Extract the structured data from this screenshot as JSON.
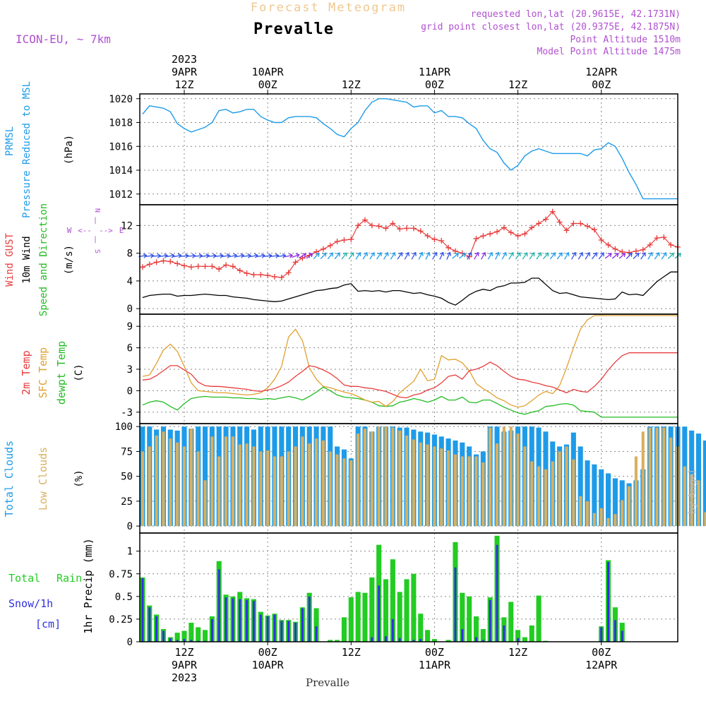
{
  "header": {
    "subtitle": "Forecast Meteogram",
    "title": "Prevalle",
    "model": "ICON-EU, ~ 7km",
    "requested": "requested lon,lat (20.9615E, 42.1731N)",
    "gridpoint": "grid point closest lon,lat (20.9375E, 42.1875N)",
    "point_alt": "Point Altitude 1510m",
    "model_alt": "Model Point Altitude 1475m"
  },
  "footer": {
    "station": "Prevalle",
    "credit": "by Angel"
  },
  "time_axis": {
    "top_ticks": [
      {
        "x": 12,
        "lines": [
          "2023",
          "9APR",
          "12Z"
        ]
      },
      {
        "x": 24,
        "lines": [
          "10APR",
          "00Z"
        ]
      },
      {
        "x": 36,
        "lines": [
          "12Z"
        ]
      },
      {
        "x": 48,
        "lines": [
          "11APR",
          "00Z"
        ]
      },
      {
        "x": 60,
        "lines": [
          "12Z"
        ]
      },
      {
        "x": 72,
        "lines": [
          "12APR",
          "00Z"
        ]
      }
    ],
    "bottom_ticks": [
      {
        "x": 12,
        "lines": [
          "12Z",
          "9APR",
          "2023"
        ]
      },
      {
        "x": 24,
        "lines": [
          "00Z",
          "10APR"
        ]
      },
      {
        "x": 36,
        "lines": [
          "12Z"
        ]
      },
      {
        "x": 48,
        "lines": [
          "00Z",
          "11APR"
        ]
      },
      {
        "x": 60,
        "lines": [
          "12Z"
        ]
      },
      {
        "x": 72,
        "lines": [
          "00Z",
          "12APR"
        ]
      }
    ]
  },
  "colors": {
    "pressure": "#1e9be8",
    "gust": "#e83c3c",
    "wind": "#000000",
    "direction": "#22bb22",
    "t2m": "#e83c3c",
    "sfc": "#e0a030",
    "dew": "#22bb22",
    "total_clouds": "#1e9be8",
    "low_clouds": "#d8b060",
    "rain": "#22cc22",
    "snow": "#3030e0",
    "label_purple": "#b050d0"
  },
  "chart_data": [
    {
      "type": "line",
      "name": "pressure",
      "labels": [
        "PRMSL",
        "Pressure Reduced to MSL",
        "(hPa)"
      ],
      "yticks": [
        1012,
        1014,
        1016,
        1018,
        1020
      ],
      "ylim": [
        1011.1,
        1020.4
      ],
      "x": [
        6,
        7,
        8,
        9,
        10,
        11,
        12,
        13,
        14,
        15,
        16,
        17,
        18,
        19,
        20,
        21,
        22,
        23,
        24,
        25,
        26,
        27,
        28,
        29,
        30,
        31,
        32,
        33,
        34,
        35,
        36,
        37,
        38,
        39,
        40,
        41,
        42,
        43,
        44,
        45,
        46,
        47,
        48,
        49,
        50,
        51,
        52,
        53,
        54,
        55,
        56,
        57,
        58,
        59,
        60,
        61,
        62,
        63,
        64,
        65,
        66,
        67,
        68,
        69,
        70,
        71,
        72,
        73,
        74,
        75,
        76,
        77,
        78,
        79,
        80,
        81,
        82,
        83
      ],
      "values": [
        1018.7,
        1019.4,
        1019.3,
        1019.2,
        1018.9,
        1017.9,
        1017.5,
        1017.2,
        1017.4,
        1017.6,
        1018.0,
        1019.0,
        1019.1,
        1018.8,
        1018.9,
        1019.1,
        1019.1,
        1018.5,
        1018.2,
        1018.0,
        1018.0,
        1018.4,
        1018.5,
        1018.5,
        1018.5,
        1018.4,
        1017.9,
        1017.5,
        1017.0,
        1016.8,
        1017.5,
        1018.0,
        1019.0,
        1019.7,
        1020.0,
        1020.0,
        1019.9,
        1019.8,
        1019.7,
        1019.3,
        1019.4,
        1019.4,
        1018.8,
        1019.0,
        1018.5,
        1018.5,
        1018.4,
        1017.9,
        1017.5,
        1016.5,
        1015.8,
        1015.5,
        1014.6,
        1014.0,
        1014.4,
        1015.2,
        1015.6,
        1015.8,
        1015.6,
        1015.4,
        1015.4,
        1015.4,
        1015.4,
        1015.4,
        1015.2,
        1015.7,
        1015.8,
        1016.3,
        1016.0,
        1015.0,
        1013.8,
        1012.8,
        1011.6,
        1011.6,
        1011.6,
        1011.6,
        1011.6,
        1011.6
      ]
    },
    {
      "type": "line",
      "name": "wind",
      "labels": [
        "Wind GUST",
        "10m Wind",
        "Speed and Direction",
        "(m/s)"
      ],
      "compass": [
        "N",
        "W",
        "E",
        "S"
      ],
      "yticks": [
        0,
        4,
        8,
        12
      ],
      "ylim": [
        -0.8,
        15.0
      ],
      "x": [
        6,
        7,
        8,
        9,
        10,
        11,
        12,
        13,
        14,
        15,
        16,
        17,
        18,
        19,
        20,
        21,
        22,
        23,
        24,
        25,
        26,
        27,
        28,
        29,
        30,
        31,
        32,
        33,
        34,
        35,
        36,
        37,
        38,
        39,
        40,
        41,
        42,
        43,
        44,
        45,
        46,
        47,
        48,
        49,
        50,
        51,
        52,
        53,
        54,
        55,
        56,
        57,
        58,
        59,
        60,
        61,
        62,
        63,
        64,
        65,
        66,
        67,
        68,
        69,
        70,
        71,
        72,
        73,
        74,
        75,
        76,
        77,
        78,
        79,
        80,
        81,
        82,
        83
      ],
      "gust": [
        6.0,
        6.4,
        6.7,
        6.9,
        6.8,
        6.5,
        6.2,
        6.0,
        6.1,
        6.1,
        6.1,
        5.7,
        6.3,
        6.1,
        5.5,
        5.1,
        4.9,
        4.9,
        4.8,
        4.6,
        4.5,
        5.2,
        6.7,
        7.3,
        7.7,
        8.2,
        8.6,
        9.1,
        9.7,
        9.9,
        10.0,
        12.0,
        12.8,
        12.0,
        11.9,
        11.6,
        12.3,
        11.5,
        11.6,
        11.6,
        11.2,
        10.5,
        10.0,
        9.8,
        8.8,
        8.3,
        8.0,
        7.5,
        10.1,
        10.5,
        10.8,
        11.1,
        11.7,
        11.0,
        10.5,
        10.8,
        11.7,
        12.3,
        12.9,
        14.0,
        12.5,
        11.3,
        12.3,
        12.3,
        11.9,
        11.4,
        9.9,
        9.2,
        8.6,
        8.2,
        8.1,
        8.3,
        8.5,
        9.2,
        10.2,
        10.3,
        9.2,
        8.9
      ],
      "speed": [
        1.6,
        1.9,
        2.0,
        2.1,
        2.1,
        1.8,
        1.9,
        1.9,
        2.0,
        2.1,
        2.0,
        1.9,
        1.9,
        1.7,
        1.6,
        1.5,
        1.3,
        1.2,
        1.1,
        1.0,
        1.1,
        1.4,
        1.7,
        2.0,
        2.3,
        2.6,
        2.7,
        2.9,
        3.0,
        3.4,
        3.6,
        2.5,
        2.6,
        2.5,
        2.6,
        2.4,
        2.6,
        2.6,
        2.4,
        2.2,
        2.3,
        2.0,
        1.8,
        1.5,
        0.9,
        0.5,
        1.2,
        2.0,
        2.5,
        2.8,
        2.6,
        3.1,
        3.3,
        3.7,
        3.7,
        3.8,
        4.4,
        4.4,
        3.5,
        2.6,
        2.2,
        2.3,
        2.0,
        1.7,
        1.6,
        1.5,
        1.4,
        1.3,
        1.4,
        2.4,
        2.0,
        2.1,
        1.9,
        2.9,
        3.9,
        4.6,
        5.3,
        5.3
      ],
      "arrow_angles": [
        260,
        262,
        265,
        262,
        260,
        258,
        262,
        265,
        265,
        262,
        263,
        262,
        260,
        258,
        258,
        262,
        258,
        260,
        262,
        262,
        262,
        258,
        250,
        240,
        232,
        225,
        222,
        220,
        220,
        218,
        215,
        214,
        212,
        214,
        214,
        212,
        212,
        214,
        210,
        210,
        208,
        208,
        210,
        206,
        205,
        230,
        232,
        212,
        210,
        210,
        210,
        205,
        210,
        212,
        215,
        215,
        215,
        215,
        220,
        218,
        218,
        212,
        210,
        212,
        212,
        218,
        218,
        232,
        230,
        230,
        225,
        225,
        215,
        210,
        215,
        215,
        225,
        230
      ],
      "arrow_colors": [
        "#3050e8",
        "#3050e8",
        "#3050e8",
        "#3050e8",
        "#3050e8",
        "#3050e8",
        "#3050e8",
        "#3050e8",
        "#3050e8",
        "#3050e8",
        "#3050e8",
        "#3050e8",
        "#3050e8",
        "#3050e8",
        "#3050e8",
        "#3050e8",
        "#3050e8",
        "#3050e8",
        "#3050e8",
        "#3050e8",
        "#3050e8",
        "#8a2be2",
        "#8a2be2",
        "#8a2be2",
        "#8a2be2",
        "#1e9be8",
        "#1e9be8",
        "#1e9be8",
        "#1e9be8",
        "#20b2aa",
        "#20b2aa",
        "#1e9be8",
        "#1e9be8",
        "#1e9be8",
        "#1e9be8",
        "#1e9be8",
        "#1e9be8",
        "#3050e8",
        "#3050e8",
        "#3050e8",
        "#1e9be8",
        "#1e9be8",
        "#3050e8",
        "#3050e8",
        "#3050e8",
        "#1e9be8",
        "#1e9be8",
        "#3050e8",
        "#8a2be2",
        "#8a2be2",
        "#1e9be8",
        "#1e9be8",
        "#1e9be8",
        "#20b2aa",
        "#20b2aa",
        "#20b2aa",
        "#20b2aa",
        "#20b2aa",
        "#20b2aa",
        "#1e9be8",
        "#1e9be8",
        "#1e9be8",
        "#3050e8",
        "#3050e8",
        "#3050e8",
        "#3050e8",
        "#3050e8",
        "#8a2be2",
        "#8a2be2",
        "#8a2be2",
        "#3050e8",
        "#3050e8",
        "#3050e8",
        "#1e9be8",
        "#1e9be8",
        "#1e9be8",
        "#20b2aa",
        "#20b2aa"
      ]
    },
    {
      "type": "line",
      "name": "temperature",
      "labels": [
        "2m Temp",
        "SFC Temp",
        "dewpt Temp",
        "(C)"
      ],
      "yticks": [
        -3,
        0,
        3,
        6,
        9
      ],
      "ylim": [
        -4.6,
        10.7
      ],
      "x": [
        6,
        7,
        8,
        9,
        10,
        11,
        12,
        13,
        14,
        15,
        16,
        17,
        18,
        19,
        20,
        21,
        22,
        23,
        24,
        25,
        26,
        27,
        28,
        29,
        30,
        31,
        32,
        33,
        34,
        35,
        36,
        37,
        38,
        39,
        40,
        41,
        42,
        43,
        44,
        45,
        46,
        47,
        48,
        49,
        50,
        51,
        52,
        53,
        54,
        55,
        56,
        57,
        58,
        59,
        60,
        61,
        62,
        63,
        64,
        65,
        66,
        67,
        68,
        69,
        70,
        71,
        72,
        73,
        74,
        75,
        76,
        77,
        78,
        79,
        80,
        81,
        82,
        83
      ],
      "t2m": [
        1.5,
        1.6,
        2.1,
        2.8,
        3.5,
        3.5,
        2.9,
        2.3,
        1.2,
        0.7,
        0.6,
        0.6,
        0.5,
        0.4,
        0.3,
        0.2,
        0.0,
        -0.1,
        0.1,
        0.3,
        0.7,
        1.2,
        2.0,
        2.7,
        3.5,
        3.3,
        2.9,
        2.4,
        1.7,
        0.8,
        0.6,
        0.6,
        0.4,
        0.3,
        0.1,
        -0.1,
        -0.5,
        -0.9,
        -1.0,
        -0.6,
        -0.4,
        0.1,
        0.4,
        1.1,
        2.0,
        2.2,
        1.6,
        2.8,
        3.0,
        3.4,
        4.0,
        3.5,
        2.7,
        2.0,
        1.6,
        1.5,
        1.2,
        1.0,
        0.7,
        0.5,
        0.1,
        -0.3,
        0.2,
        -0.1,
        -0.2,
        0.6,
        1.6,
        2.9,
        4.0,
        4.9,
        5.3,
        5.3,
        5.3,
        5.3,
        5.3,
        5.3,
        5.3,
        5.3
      ],
      "sfc": [
        2.0,
        2.2,
        3.8,
        5.7,
        6.5,
        5.5,
        3.4,
        1.1,
        0.0,
        -0.1,
        -0.2,
        -0.3,
        -0.3,
        -0.4,
        -0.5,
        -0.6,
        -0.5,
        -0.3,
        0.4,
        1.6,
        3.4,
        7.5,
        8.6,
        7.0,
        3.2,
        1.6,
        0.6,
        0.4,
        0.1,
        -0.2,
        -0.4,
        -0.8,
        -1.3,
        -1.6,
        -1.5,
        -2.2,
        -1.5,
        -0.3,
        0.5,
        1.3,
        3.0,
        1.4,
        1.6,
        4.9,
        4.3,
        4.4,
        3.9,
        2.8,
        1.0,
        0.3,
        -0.3,
        -1.0,
        -1.4,
        -2.0,
        -2.3,
        -2.1,
        -1.4,
        -0.6,
        -0.1,
        -0.4,
        0.7,
        3.2,
        6.0,
        8.6,
        9.9,
        10.5,
        10.5,
        10.5,
        10.5,
        10.5,
        10.5,
        10.5,
        10.5,
        10.5,
        10.5,
        10.5,
        10.5,
        10.5
      ],
      "dew": [
        -2.0,
        -1.6,
        -1.4,
        -1.6,
        -2.2,
        -2.7,
        -1.8,
        -1.1,
        -0.9,
        -0.8,
        -0.9,
        -0.9,
        -0.9,
        -1.0,
        -1.0,
        -1.1,
        -1.1,
        -1.2,
        -1.1,
        -1.2,
        -1.0,
        -0.8,
        -1.0,
        -1.3,
        -0.8,
        -0.2,
        0.5,
        0.0,
        -0.6,
        -0.9,
        -1.0,
        -1.1,
        -1.3,
        -1.6,
        -2.1,
        -2.2,
        -2.1,
        -1.6,
        -1.4,
        -1.1,
        -1.3,
        -1.6,
        -1.3,
        -0.8,
        -1.3,
        -1.3,
        -0.9,
        -1.6,
        -1.7,
        -1.3,
        -1.3,
        -1.8,
        -2.3,
        -2.7,
        -3.1,
        -3.3,
        -3.0,
        -2.8,
        -2.2,
        -2.1,
        -1.9,
        -1.8,
        -2.0,
        -2.8,
        -2.9,
        -3.0,
        -3.7,
        -3.7,
        -3.7,
        -3.7,
        -3.7,
        -3.7,
        -3.7,
        -3.7,
        -3.7,
        -3.7,
        -3.7,
        -3.7
      ]
    },
    {
      "type": "bar",
      "name": "clouds",
      "labels": [
        "Total Clouds",
        "Low Clouds",
        "(%)"
      ],
      "yticks": [
        0,
        25,
        50,
        75,
        100
      ],
      "ylim": [
        -7,
        103
      ],
      "x_start": 6,
      "total": [
        100,
        100,
        97,
        100,
        98,
        97,
        100,
        100,
        100,
        100,
        100,
        100,
        100,
        100,
        100,
        100,
        100,
        100,
        100,
        100,
        100,
        100,
        100,
        100,
        100,
        100,
        100,
        100,
        100,
        100,
        100,
        100,
        100,
        100,
        100,
        100,
        100,
        100,
        100,
        100,
        100,
        100,
        100,
        100,
        100,
        100,
        100,
        100,
        100,
        100,
        100,
        100,
        100,
        100,
        100,
        100,
        100,
        100,
        100,
        100,
        100,
        100,
        100,
        100,
        100,
        100,
        100,
        100,
        100,
        100,
        100,
        100,
        100,
        100,
        100,
        100,
        100,
        100,
        100,
        100,
        100,
        100,
        100,
        100,
        100,
        100,
        100,
        100,
        100,
        100,
        100,
        100,
        100,
        100,
        100,
        100,
        100,
        100,
        100,
        100,
        100,
        100,
        100,
        100,
        100,
        100,
        100,
        100,
        100,
        100,
        100,
        100,
        100,
        100,
        100,
        100,
        100,
        100,
        100,
        100,
        100,
        100,
        100,
        100,
        100,
        100,
        100,
        100,
        100,
        100,
        100,
        100,
        100,
        100,
        100,
        100,
        100,
        100,
        100,
        100,
        100,
        100,
        100,
        100,
        100,
        100,
        100,
        100,
        100,
        100,
        100,
        100,
        100,
        100,
        100,
        100
      ],
      "low": []
    },
    {
      "type": "bar",
      "name": "precip",
      "labels": [
        "Total",
        "Rain",
        "Snow/1h",
        "[cm]",
        "1hr Precip (mm)"
      ],
      "yticks": [
        0,
        0.25,
        0.5,
        0.75,
        1
      ],
      "ytick_labels": [
        "0",
        "0.25",
        "0.5",
        "0.75",
        "1"
      ],
      "ylim": [
        0,
        1.2
      ],
      "x_start": 6,
      "rain": [
        0.71,
        0.4,
        0.3,
        0.14,
        0.05,
        0.1,
        0.12,
        0.21,
        0.16,
        0.13,
        0.28,
        0.89,
        0.52,
        0.5,
        0.55,
        0.48,
        0.47,
        0.33,
        0.29,
        0.31,
        0.24,
        0.24,
        0.22,
        0.38,
        0.54,
        0.37,
        0,
        0.02,
        0.02,
        0.27,
        0.49,
        0.55,
        0.54,
        0.71,
        1.07,
        0.69,
        0.91,
        0.55,
        0.69,
        0.75,
        0.31,
        0.13,
        0.03,
        0,
        0.02,
        1.1,
        0.54,
        0.5,
        0.28,
        0.14,
        0.49,
        1.17,
        0.27,
        0.44,
        0.13,
        0.05,
        0.18,
        0.51,
        0.01,
        0,
        0,
        0,
        0,
        0,
        0,
        0,
        0.17,
        0.9,
        0.38,
        0.21,
        0,
        0,
        0,
        0,
        0,
        0,
        0,
        0
      ],
      "snow": [
        0.7,
        0.38,
        0.28,
        0.12,
        0.04,
        0.02,
        0.03,
        0.02,
        0.01,
        0.01,
        0.25,
        0.8,
        0.49,
        0.48,
        0.47,
        0.46,
        0.45,
        0.3,
        0.28,
        0.3,
        0.23,
        0.23,
        0.21,
        0.37,
        0.5,
        0.17,
        0,
        0,
        0,
        0,
        0,
        0,
        0,
        0.05,
        0.62,
        0.06,
        0.25,
        0.04,
        0,
        0.02,
        0.03,
        0,
        0,
        0,
        0,
        0.82,
        0.14,
        0,
        0.05,
        0.02,
        0.46,
        1.07,
        0.18,
        0,
        0.04,
        0,
        0,
        0,
        0,
        0,
        0,
        0,
        0,
        0,
        0,
        0,
        0.16,
        0.88,
        0.24,
        0.12,
        0,
        0,
        0,
        0,
        0,
        0,
        0,
        0
      ]
    }
  ]
}
